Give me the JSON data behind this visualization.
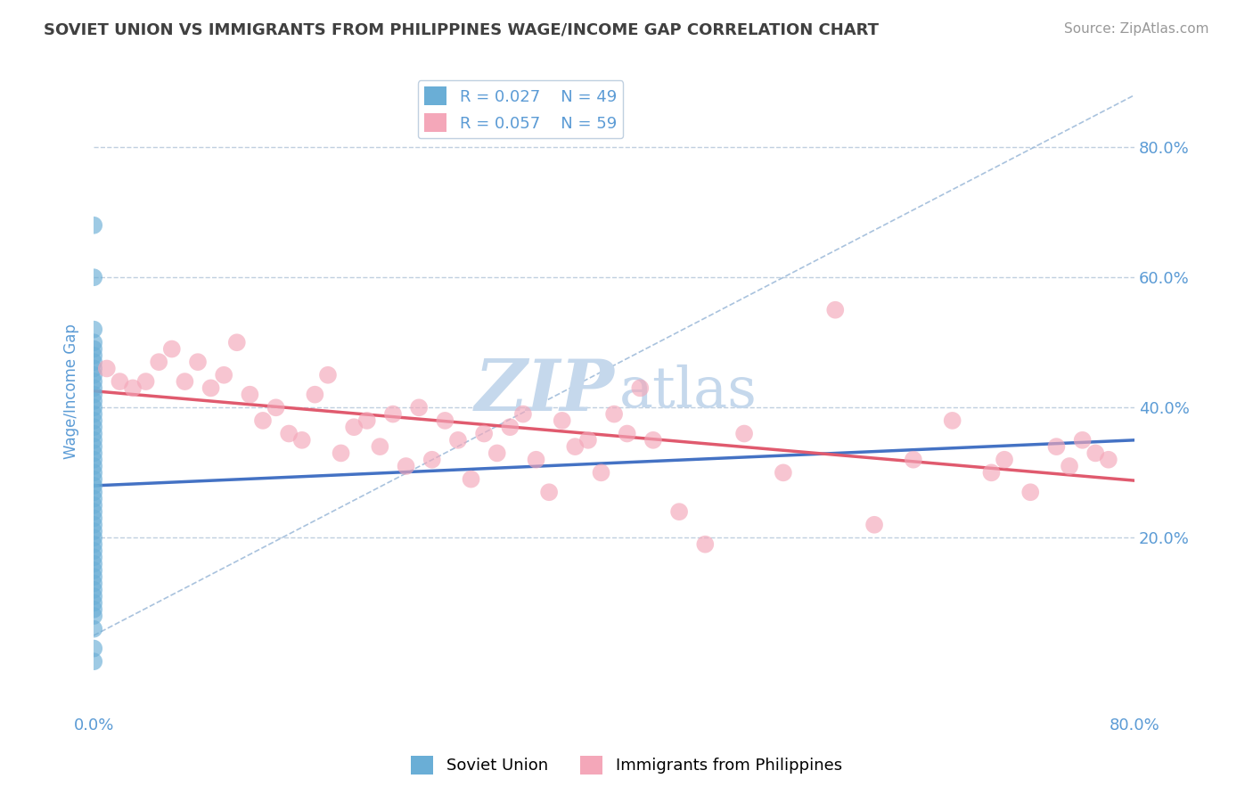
{
  "title": "SOVIET UNION VS IMMIGRANTS FROM PHILIPPINES WAGE/INCOME GAP CORRELATION CHART",
  "source": "Source: ZipAtlas.com",
  "ylabel": "Wage/Income Gap",
  "yticks_right": [
    "80.0%",
    "60.0%",
    "40.0%",
    "20.0%"
  ],
  "ytick_values_right": [
    0.8,
    0.6,
    0.4,
    0.2
  ],
  "xlim": [
    0.0,
    0.8
  ],
  "ylim": [
    -0.07,
    0.92
  ],
  "legend1_label": "Soviet Union",
  "legend2_label": "Immigrants from Philippines",
  "R1": 0.027,
  "N1": 49,
  "R2": 0.057,
  "N2": 59,
  "blue_color": "#6aaed6",
  "pink_color": "#f4a7b9",
  "blue_line_color": "#4472c4",
  "pink_line_color": "#e05a6e",
  "blue_dashed_color": "#9ab8d8",
  "title_color": "#404040",
  "source_color": "#999999",
  "axis_label_color": "#5b9bd5",
  "legend_R_N_color": "#5b9bd5",
  "background_color": "#ffffff",
  "plot_bg_color": "#ffffff",
  "grid_color": "#c0d0e0",
  "soviet_x": [
    0.0,
    0.0,
    0.0,
    0.0,
    0.0,
    0.0,
    0.0,
    0.0,
    0.0,
    0.0,
    0.0,
    0.0,
    0.0,
    0.0,
    0.0,
    0.0,
    0.0,
    0.0,
    0.0,
    0.0,
    0.0,
    0.0,
    0.0,
    0.0,
    0.0,
    0.0,
    0.0,
    0.0,
    0.0,
    0.0,
    0.0,
    0.0,
    0.0,
    0.0,
    0.0,
    0.0,
    0.0,
    0.0,
    0.0,
    0.0,
    0.0,
    0.0,
    0.0,
    0.0,
    0.0,
    0.0,
    0.0,
    0.0,
    0.0
  ],
  "soviet_y": [
    0.68,
    0.6,
    0.52,
    0.5,
    0.49,
    0.48,
    0.47,
    0.46,
    0.45,
    0.44,
    0.43,
    0.42,
    0.41,
    0.4,
    0.39,
    0.38,
    0.37,
    0.36,
    0.35,
    0.34,
    0.33,
    0.32,
    0.31,
    0.3,
    0.29,
    0.28,
    0.27,
    0.26,
    0.25,
    0.24,
    0.23,
    0.22,
    0.21,
    0.2,
    0.19,
    0.18,
    0.17,
    0.16,
    0.15,
    0.14,
    0.13,
    0.12,
    0.11,
    0.1,
    0.09,
    0.08,
    0.06,
    0.03,
    0.01
  ],
  "soviet_line_x": [
    0.0,
    0.8
  ],
  "soviet_line_y": [
    0.28,
    0.35
  ],
  "philippines_x": [
    0.01,
    0.02,
    0.03,
    0.04,
    0.05,
    0.06,
    0.07,
    0.08,
    0.09,
    0.1,
    0.11,
    0.12,
    0.13,
    0.14,
    0.15,
    0.16,
    0.17,
    0.18,
    0.19,
    0.2,
    0.21,
    0.22,
    0.23,
    0.24,
    0.25,
    0.26,
    0.27,
    0.28,
    0.29,
    0.3,
    0.31,
    0.32,
    0.33,
    0.34,
    0.35,
    0.36,
    0.37,
    0.38,
    0.39,
    0.4,
    0.41,
    0.42,
    0.43,
    0.45,
    0.47,
    0.5,
    0.53,
    0.57,
    0.6,
    0.63,
    0.66,
    0.69,
    0.7,
    0.72,
    0.74,
    0.75,
    0.76,
    0.77,
    0.78
  ],
  "philippines_y": [
    0.46,
    0.44,
    0.43,
    0.44,
    0.47,
    0.49,
    0.44,
    0.47,
    0.43,
    0.45,
    0.5,
    0.42,
    0.38,
    0.4,
    0.36,
    0.35,
    0.42,
    0.45,
    0.33,
    0.37,
    0.38,
    0.34,
    0.39,
    0.31,
    0.4,
    0.32,
    0.38,
    0.35,
    0.29,
    0.36,
    0.33,
    0.37,
    0.39,
    0.32,
    0.27,
    0.38,
    0.34,
    0.35,
    0.3,
    0.39,
    0.36,
    0.43,
    0.35,
    0.24,
    0.19,
    0.36,
    0.3,
    0.55,
    0.22,
    0.32,
    0.38,
    0.3,
    0.32,
    0.27,
    0.34,
    0.31,
    0.35,
    0.33,
    0.32
  ],
  "watermark_color": "#c5d8ec"
}
